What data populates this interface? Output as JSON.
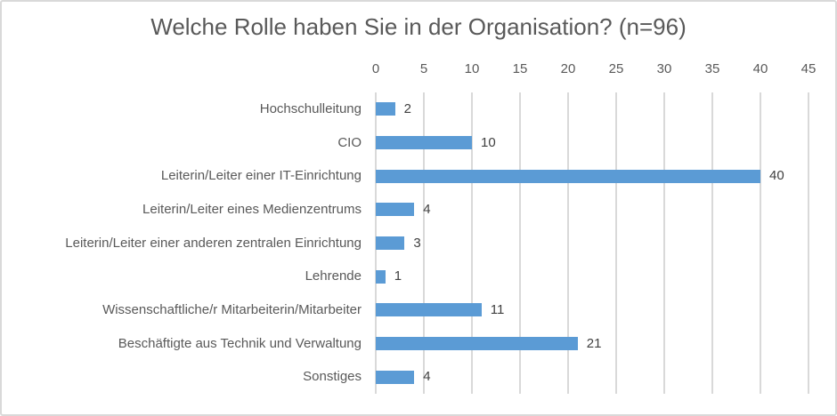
{
  "chart_data": {
    "type": "bar",
    "orientation": "horizontal",
    "title": "Welche Rolle haben Sie in der Organisation? (n=96)",
    "categories": [
      "Hochschulleitung",
      "CIO",
      "Leiterin/Leiter einer IT-Einrichtung",
      "Leiterin/Leiter eines Medienzentrums",
      "Leiterin/Leiter einer anderen zentralen Einrichtung",
      "Lehrende",
      "Wissenschaftliche/r Mitarbeiterin/Mitarbeiter",
      "Beschäftigte aus Technik und Verwaltung",
      "Sonstiges"
    ],
    "values": [
      2,
      10,
      40,
      4,
      3,
      1,
      11,
      21,
      4
    ],
    "xlim": [
      0,
      45
    ],
    "xticks": [
      0,
      5,
      10,
      15,
      20,
      25,
      30,
      35,
      40,
      45
    ],
    "xlabel": "",
    "ylabel": "",
    "axis_position": "top",
    "grid": true,
    "data_labels": true,
    "legend": "none",
    "colors": {
      "bar": "#5b9bd5",
      "gridline": "#d9d9d9",
      "title_text": "#595959",
      "axis_text": "#595959",
      "value_text": "#404040",
      "border": "#d9d9d9",
      "background": "#ffffff"
    }
  }
}
